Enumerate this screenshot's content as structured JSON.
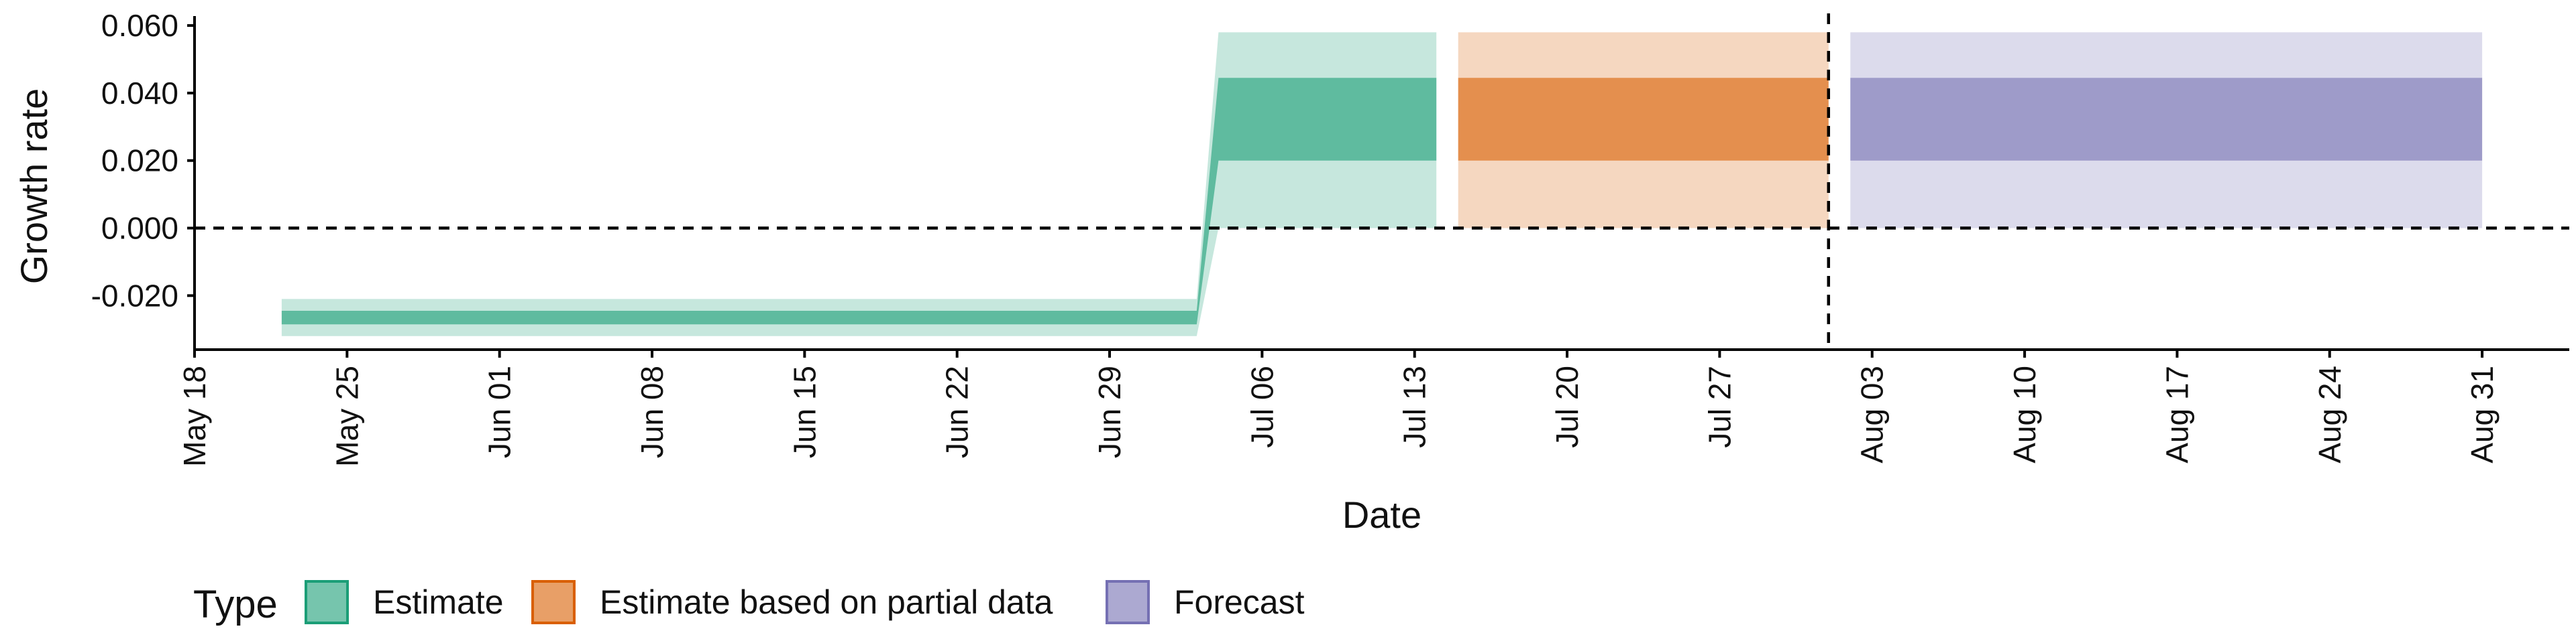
{
  "chart_data": {
    "type": "area",
    "xlabel": "Date",
    "ylabel": "Growth rate",
    "x_range": [
      "2020-05-18",
      "2020-09-04"
    ],
    "ylim": [
      -0.036,
      0.062
    ],
    "x_ticks": [
      {
        "date": "2020-05-18",
        "label": "May 18"
      },
      {
        "date": "2020-05-25",
        "label": "May 25"
      },
      {
        "date": "2020-06-01",
        "label": "Jun 01"
      },
      {
        "date": "2020-06-08",
        "label": "Jun 08"
      },
      {
        "date": "2020-06-15",
        "label": "Jun 15"
      },
      {
        "date": "2020-06-22",
        "label": "Jun 22"
      },
      {
        "date": "2020-06-29",
        "label": "Jun 29"
      },
      {
        "date": "2020-07-06",
        "label": "Jul 06"
      },
      {
        "date": "2020-07-13",
        "label": "Jul 13"
      },
      {
        "date": "2020-07-20",
        "label": "Jul 20"
      },
      {
        "date": "2020-07-27",
        "label": "Jul 27"
      },
      {
        "date": "2020-08-03",
        "label": "Aug 03"
      },
      {
        "date": "2020-08-10",
        "label": "Aug 10"
      },
      {
        "date": "2020-08-17",
        "label": "Aug 17"
      },
      {
        "date": "2020-08-24",
        "label": "Aug 24"
      },
      {
        "date": "2020-08-31",
        "label": "Aug 31"
      }
    ],
    "y_ticks": [
      {
        "value": 0.06,
        "label": "0.060"
      },
      {
        "value": 0.04,
        "label": "0.040"
      },
      {
        "value": 0.02,
        "label": "0.020"
      },
      {
        "value": 0.0,
        "label": "0.000"
      },
      {
        "value": -0.02,
        "label": "-0.020"
      }
    ],
    "hline_y": 0.0,
    "vline_x": "2020-08-01",
    "legend": {
      "title": "Type",
      "position": "bottom-left"
    },
    "grid": false,
    "series": [
      {
        "name": "Estimate",
        "color": "#1b9e77",
        "points": [
          {
            "x": "2020-05-22",
            "lower90": -0.032,
            "lower50": -0.0285,
            "upper50": -0.0245,
            "upper90": -0.021
          },
          {
            "x": "2020-07-03",
            "lower90": -0.032,
            "lower50": -0.0285,
            "upper50": -0.0245,
            "upper90": -0.021
          },
          {
            "x": "2020-07-04",
            "lower90": 0.0,
            "lower50": 0.02,
            "upper50": 0.0445,
            "upper90": 0.058
          },
          {
            "x": "2020-07-14",
            "lower90": 0.0,
            "lower50": 0.02,
            "upper50": 0.0445,
            "upper90": 0.058
          }
        ]
      },
      {
        "name": "Estimate based on partial data",
        "color": "#d95f02",
        "points": [
          {
            "x": "2020-07-15",
            "lower90": 0.0,
            "lower50": 0.02,
            "upper50": 0.0445,
            "upper90": 0.058
          },
          {
            "x": "2020-08-01",
            "lower90": 0.0,
            "lower50": 0.02,
            "upper50": 0.0445,
            "upper90": 0.058
          }
        ]
      },
      {
        "name": "Forecast",
        "color": "#7570b3",
        "points": [
          {
            "x": "2020-08-02",
            "lower90": 0.0,
            "lower50": 0.02,
            "upper50": 0.0445,
            "upper90": 0.058
          },
          {
            "x": "2020-08-31",
            "lower90": 0.0,
            "lower50": 0.02,
            "upper50": 0.0445,
            "upper90": 0.058
          }
        ]
      }
    ]
  }
}
